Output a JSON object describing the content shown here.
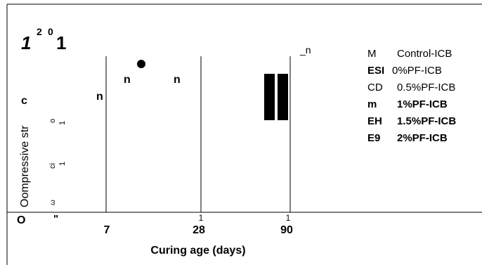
{
  "chart_data": {
    "type": "bar",
    "title": "1 2 0 1",
    "title_parts": [
      "1",
      "2",
      "0",
      "1"
    ],
    "xlabel": "Curing age (days)",
    "ylabel": "Oompressive str",
    "ylabel_tail": "c",
    "categories": [
      "7",
      "28",
      "90"
    ],
    "category_tick_marks": [
      "",
      "1",
      "1"
    ],
    "y_tick_labels": [
      "O",
      "\"",
      "ω",
      "ci",
      "1",
      "o",
      "1"
    ],
    "legend_placement": "right",
    "legend": [
      {
        "code": "M",
        "label": "Control-ICB",
        "bold": false
      },
      {
        "code": "ESI",
        "label": "0%PF-ICB",
        "bold": false,
        "code_bold": true
      },
      {
        "code": "CD",
        "label": "0.5%PF-ICB",
        "bold": false
      },
      {
        "code": "m",
        "label": "1%PF-ICB",
        "bold": true
      },
      {
        "code": "EH",
        "label": "1.5%PF-ICB",
        "bold": true
      },
      {
        "code": "E9",
        "label": "2%PF-ICB",
        "bold": true
      }
    ],
    "annotations": [
      "n",
      "n",
      "n",
      "_n"
    ],
    "grid": false,
    "colors": {
      "ink": "#000000",
      "background": "#ffffff"
    }
  }
}
